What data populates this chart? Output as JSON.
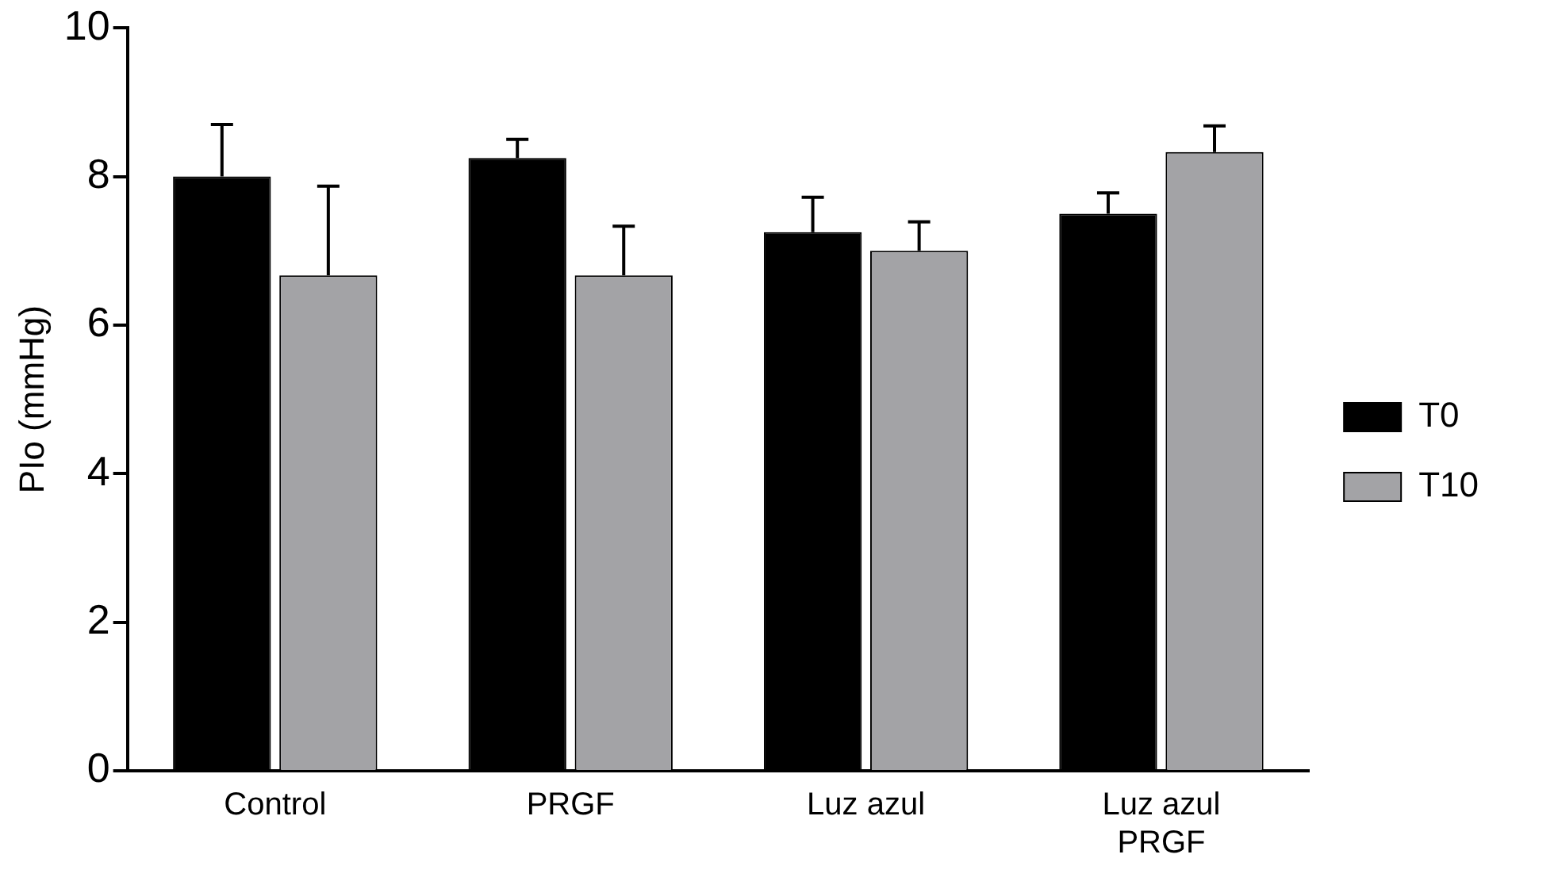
{
  "chart_data": {
    "type": "bar",
    "ylabel": "PIo (mmHg)",
    "categories": [
      "Control",
      "PRGF",
      "Luz azul",
      "Luz azul\nPRGF"
    ],
    "ylim": [
      0,
      10
    ],
    "yticks": [
      0,
      2,
      4,
      6,
      8,
      10
    ],
    "grid": false,
    "legend": "right",
    "series": [
      {
        "name": "T0",
        "color": "#000000",
        "values": [
          8.0,
          8.25,
          7.25,
          7.5
        ],
        "errors": [
          [
            8.0,
            8.7
          ],
          [
            8.25,
            8.5
          ],
          [
            7.25,
            7.72
          ],
          [
            7.5,
            7.78
          ]
        ]
      },
      {
        "name": "T10",
        "color": "#a3a3a6",
        "values": [
          6.67,
          6.67,
          7.0,
          8.33
        ],
        "errors": [
          [
            6.67,
            7.87
          ],
          [
            6.67,
            7.33
          ],
          [
            7.0,
            7.39
          ],
          [
            8.33,
            8.68
          ]
        ]
      }
    ]
  }
}
